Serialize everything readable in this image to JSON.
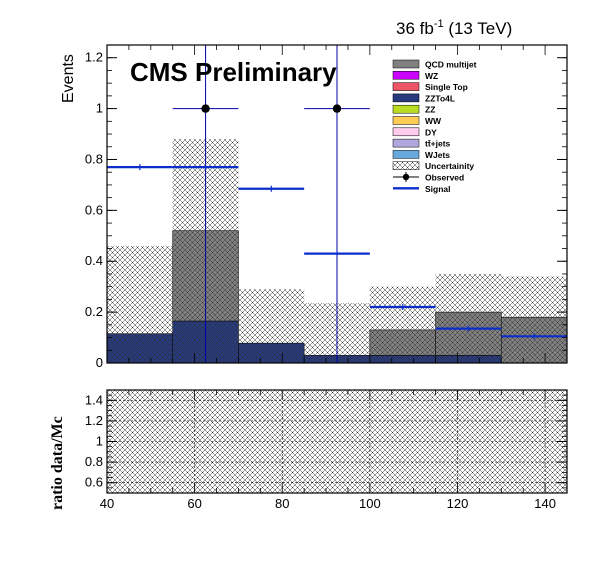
{
  "header": {
    "lumi_value": "36 fb",
    "lumi_exp": "-1",
    "lumi_energy": " (13 TeV)",
    "experiment": "CMS Preliminary"
  },
  "colors": {
    "qcd": "#808080",
    "wz": "#cc00ff",
    "single_top": "#ee5566",
    "zzto4l": "#263a7d",
    "zz": "#b8dd22",
    "ww": "#ffcc55",
    "dy": "#ffccee",
    "ttjets": "#b0a8dd",
    "wjets": "#66aadd",
    "observed": "#000000",
    "observed_err": "#0000aa",
    "signal": "#0a2dcc"
  },
  "chart_data": [
    {
      "type": "bar",
      "subtype": "stacked-histogram",
      "ylabel": "Events",
      "xlim": [
        40,
        145
      ],
      "ylim": [
        0,
        1.25
      ],
      "y_ticks": [
        0,
        0.2,
        0.4,
        0.6,
        0.8,
        1,
        1.2
      ],
      "y_tick_labels": [
        "0",
        "0.2",
        "0.4",
        "0.6",
        "0.8",
        "1",
        "1.2"
      ],
      "bin_edges": [
        40,
        55,
        70,
        85,
        100,
        115,
        130,
        145
      ],
      "stack": [
        {
          "name": "ZZTo4L",
          "color_key": "zzto4l",
          "values": [
            0.115,
            0.165,
            0.078,
            0.03,
            0.03,
            0.03,
            0.0
          ]
        },
        {
          "name": "QCD multijet",
          "color_key": "qcd",
          "values": [
            0.0,
            0.355,
            0.0,
            0.0,
            0.1,
            0.17,
            0.18
          ]
        }
      ],
      "uncertainty_band": [
        0.46,
        0.88,
        0.29,
        0.235,
        0.3,
        0.35,
        0.34
      ],
      "observed": {
        "name": "Observed",
        "points": [
          {
            "x": 62.5,
            "y": 1.0,
            "xerr": 7.5
          },
          {
            "x": 92.5,
            "y": 1.0,
            "xerr": 7.5
          }
        ]
      },
      "signal": {
        "name": "Signal",
        "points": [
          {
            "x": 47.5,
            "y": 0.77,
            "xerr": 7.5
          },
          {
            "x": 62.5,
            "y": 0.77,
            "xerr": 7.5
          },
          {
            "x": 77.5,
            "y": 0.685,
            "xerr": 7.5
          },
          {
            "x": 92.5,
            "y": 0.43,
            "xerr": 7.5
          },
          {
            "x": 107.5,
            "y": 0.22,
            "xerr": 7.5
          },
          {
            "x": 122.5,
            "y": 0.135,
            "xerr": 7.5
          },
          {
            "x": 137.5,
            "y": 0.105,
            "xerr": 7.5
          }
        ]
      },
      "legend": {
        "placement": "top-right",
        "entries": [
          {
            "label": "QCD multijet",
            "kind": "fill",
            "color_key": "qcd"
          },
          {
            "label": "WZ",
            "kind": "fill",
            "color_key": "wz"
          },
          {
            "label": "Single Top",
            "kind": "fill",
            "color_key": "single_top"
          },
          {
            "label": "ZZTo4L",
            "kind": "fill",
            "color_key": "zzto4l"
          },
          {
            "label": "ZZ",
            "kind": "fill",
            "color_key": "zz"
          },
          {
            "label": "WW",
            "kind": "fill",
            "color_key": "ww"
          },
          {
            "label": "DY",
            "kind": "fill",
            "color_key": "dy"
          },
          {
            "label": "tt̄+jets",
            "kind": "fill",
            "color_key": "ttjets"
          },
          {
            "label": "WJets",
            "kind": "fill",
            "color_key": "wjets"
          },
          {
            "label": "Uncertainity",
            "kind": "hatch",
            "color_key": "qcd"
          },
          {
            "label": "Observed",
            "kind": "marker",
            "color_key": "observed"
          },
          {
            "label": "Signal",
            "kind": "line",
            "color_key": "signal"
          }
        ]
      }
    },
    {
      "type": "scatter",
      "subtype": "ratio",
      "ylabel": "ratio data/Mc",
      "xlim": [
        40,
        145
      ],
      "ylim": [
        0.5,
        1.5
      ],
      "x_ticks": [
        40,
        60,
        80,
        100,
        120,
        140
      ],
      "x_tick_labels": [
        "40",
        "60",
        "80",
        "100",
        "120",
        "140"
      ],
      "y_ticks": [
        0.6,
        0.8,
        1,
        1.2,
        1.4
      ],
      "y_tick_labels": [
        "0.6",
        "0.8",
        "1",
        "1.2",
        "1.4"
      ],
      "grid": true,
      "uncertainty_hatched": true
    }
  ]
}
